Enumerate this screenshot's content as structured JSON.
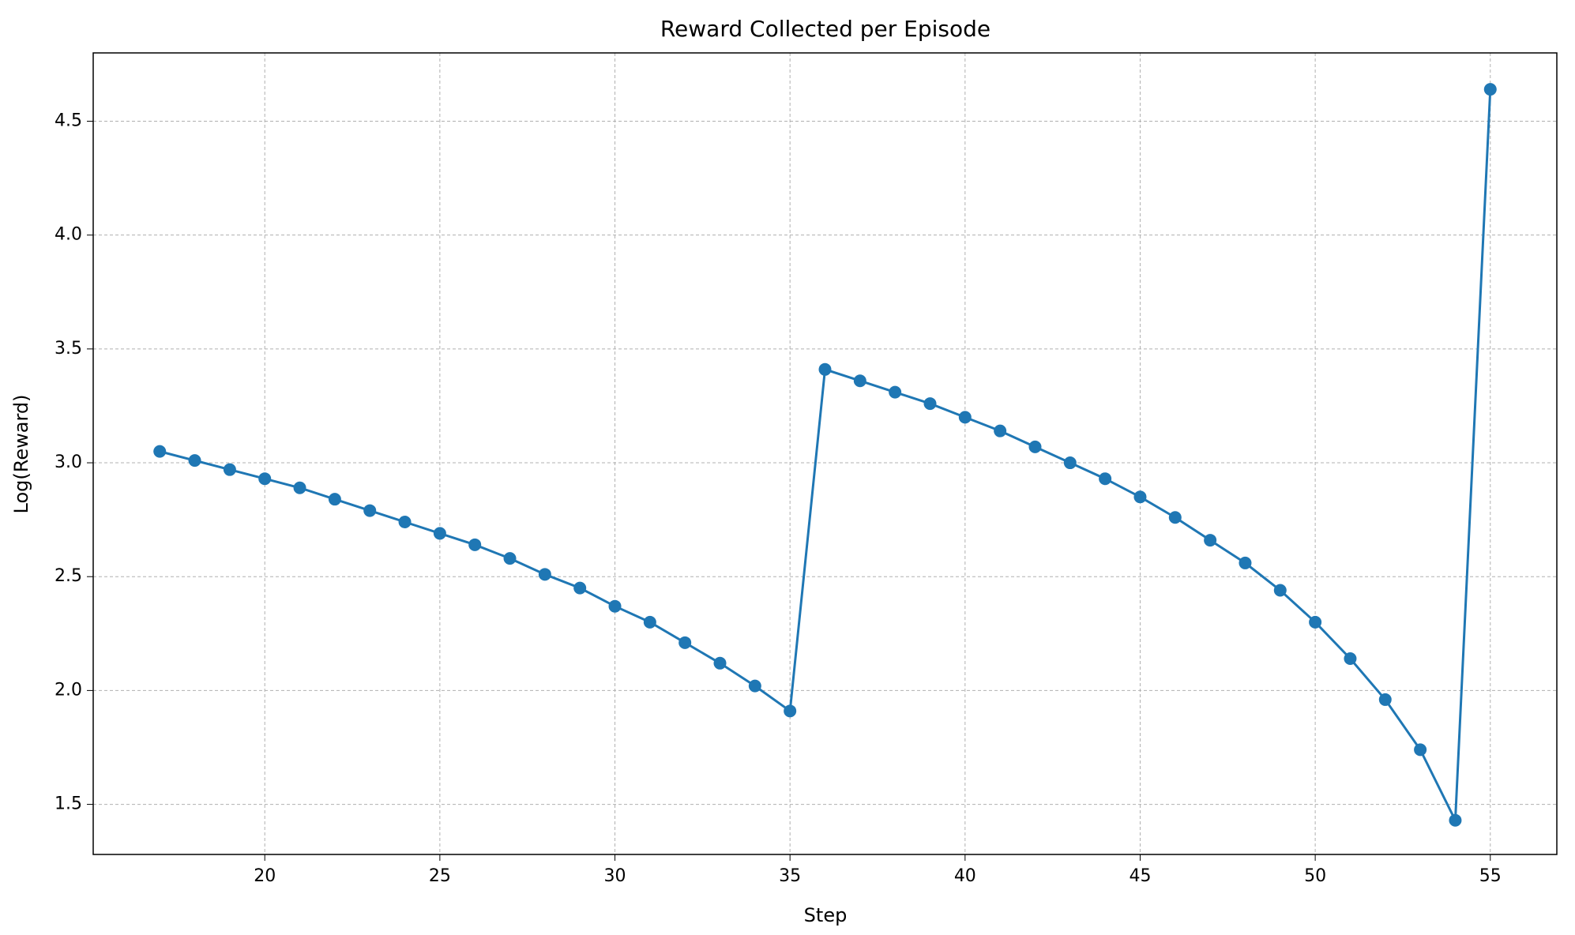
{
  "chart_data": {
    "type": "line",
    "title": "Reward Collected per Episode",
    "x_label": "Step",
    "y_label": "Log(Reward)",
    "x": [
      17,
      18,
      19,
      20,
      21,
      22,
      23,
      24,
      25,
      26,
      27,
      28,
      29,
      30,
      31,
      32,
      33,
      34,
      35,
      36,
      37,
      38,
      39,
      40,
      41,
      42,
      43,
      44,
      45,
      46,
      47,
      48,
      49,
      50,
      51,
      52,
      53,
      54,
      55
    ],
    "series": [
      {
        "name": "Log(Reward)",
        "color": "#1f77b4",
        "values": [
          3.05,
          3.01,
          2.97,
          2.93,
          2.89,
          2.84,
          2.79,
          2.74,
          2.69,
          2.64,
          2.58,
          2.51,
          2.45,
          2.37,
          2.3,
          2.21,
          2.12,
          2.02,
          1.91,
          3.41,
          3.36,
          3.31,
          3.26,
          3.2,
          3.14,
          3.07,
          3.0,
          2.93,
          2.85,
          2.76,
          2.66,
          2.56,
          2.44,
          2.3,
          2.14,
          1.96,
          1.74,
          1.43,
          4.64
        ]
      }
    ],
    "xlim": [
      15.1,
      56.9
    ],
    "xticks": [
      20,
      25,
      30,
      35,
      40,
      45,
      50,
      55
    ],
    "ylim": [
      1.28,
      4.8
    ],
    "yticks": [
      1.5,
      {
        "value": 2,
        "label": "2.0"
      },
      2.5,
      {
        "value": 3,
        "label": "3.0"
      },
      3.5,
      {
        "value": 4,
        "label": "4.0"
      },
      4.5
    ],
    "grid": true
  }
}
